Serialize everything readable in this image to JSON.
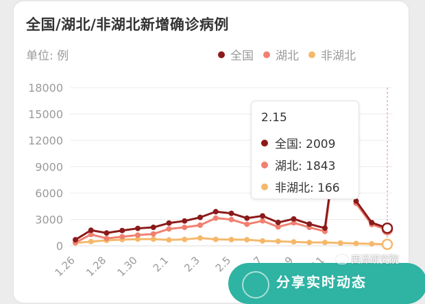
{
  "header": {
    "title": "全国/湖北/非湖北新增确诊病例",
    "unit": "单位: 例"
  },
  "legend": [
    {
      "label": "全国",
      "color": "#8b1a1a"
    },
    {
      "label": "湖北",
      "color": "#f08070"
    },
    {
      "label": "非湖北",
      "color": "#f5b86a"
    }
  ],
  "tooltip": {
    "date": "2.15",
    "rows": [
      {
        "text": "全国: 2009",
        "color": "#8b1a1a"
      },
      {
        "text": "湖北: 1843",
        "color": "#f08070"
      },
      {
        "text": "非湖北: 166",
        "color": "#f5b86a"
      }
    ]
  },
  "banner": {
    "text": "分享实时动态"
  },
  "watermark": {
    "text": "西泽研究院"
  },
  "chart_data": {
    "type": "line",
    "title": "全国/湖北/非湖北新增确诊病例",
    "ylabel": "单位: 例",
    "xlabel": "",
    "ylim": [
      0,
      18000
    ],
    "yticks": [
      0,
      3000,
      6000,
      9000,
      12000,
      15000,
      18000
    ],
    "x": [
      "1.26",
      "1.27",
      "1.28",
      "1.29",
      "1.30",
      "1.31",
      "2.1",
      "2.2",
      "2.3",
      "2.4",
      "2.5",
      "2.6",
      "2.7",
      "2.8",
      "2.9",
      "2.10",
      "2.11",
      "2.12",
      "2.13",
      "2.14",
      "2.15"
    ],
    "x_tick_labels": [
      "1.26",
      "1.28",
      "1.30",
      "2.1",
      "2.3",
      "2.5",
      "2.7",
      "2.9",
      "2.11"
    ],
    "grid": true,
    "legend_position": "top-right",
    "series": [
      {
        "name": "全国",
        "color": "#8b1a1a",
        "values": [
          688,
          1771,
          1459,
          1737,
          1982,
          2102,
          2590,
          2829,
          3235,
          3887,
          3694,
          3143,
          3399,
          2656,
          3062,
          2478,
          2015,
          15152,
          5090,
          2641,
          2009
        ]
      },
      {
        "name": "湖北",
        "color": "#f08070",
        "values": [
          371,
          1291,
          840,
          1032,
          1220,
          1347,
          1921,
          2103,
          2345,
          3156,
          2987,
          2447,
          2841,
          2147,
          2618,
          2097,
          1638,
          14840,
          4823,
          2420,
          1843
        ]
      },
      {
        "name": "非湖北",
        "color": "#f5b86a",
        "values": [
          317,
          480,
          619,
          705,
          762,
          755,
          669,
          726,
          890,
          731,
          707,
          696,
          558,
          509,
          444,
          381,
          377,
          312,
          267,
          221,
          166
        ]
      }
    ]
  }
}
